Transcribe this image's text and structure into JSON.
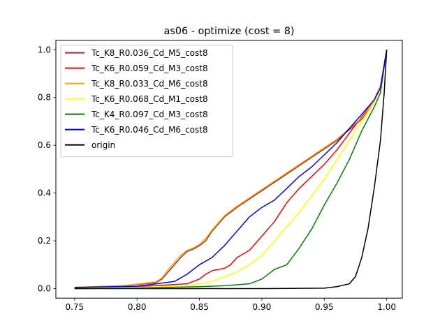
{
  "chart_data": {
    "type": "line",
    "title": "as06 - optimize (cost = 8)",
    "xlabel": "",
    "ylabel": "",
    "xlim": [
      0.735,
      1.0125
    ],
    "ylim": [
      -0.04,
      1.04
    ],
    "xticks": [
      "0.75",
      "0.80",
      "0.85",
      "0.90",
      "0.95",
      "1.00"
    ],
    "yticks": [
      "0.0",
      "0.2",
      "0.4",
      "0.6",
      "0.8",
      "1.0"
    ],
    "grid": false,
    "legend_position": "upper-left",
    "series": [
      {
        "name": "Tc_K8_R0.036_Cd_M5_cost8",
        "color": "#a52a2a",
        "x": [
          0.75,
          0.79,
          0.815,
          0.82,
          0.825,
          0.83,
          0.835,
          0.84,
          0.845,
          0.85,
          0.855,
          0.86,
          0.87,
          0.88,
          0.89,
          0.9,
          0.92,
          0.94,
          0.96,
          0.98,
          0.99,
          0.995,
          1.0
        ],
        "y": [
          0.005,
          0.012,
          0.025,
          0.04,
          0.07,
          0.1,
          0.13,
          0.155,
          0.165,
          0.18,
          0.2,
          0.24,
          0.3,
          0.34,
          0.375,
          0.41,
          0.48,
          0.55,
          0.62,
          0.71,
          0.78,
          0.84,
          1.0
        ]
      },
      {
        "name": "Tc_K6_R0.059_Cd_M3_cost8",
        "color": "#ff0000",
        "x": [
          0.75,
          0.8,
          0.84,
          0.85,
          0.855,
          0.86,
          0.87,
          0.875,
          0.88,
          0.89,
          0.9,
          0.91,
          0.92,
          0.93,
          0.94,
          0.95,
          0.96,
          0.97,
          0.98,
          0.99,
          0.995,
          1.0
        ],
        "y": [
          0.005,
          0.008,
          0.02,
          0.04,
          0.06,
          0.075,
          0.085,
          0.1,
          0.13,
          0.16,
          0.22,
          0.28,
          0.36,
          0.42,
          0.47,
          0.52,
          0.58,
          0.65,
          0.72,
          0.79,
          0.85,
          1.0
        ]
      },
      {
        "name": "Tc_K8_R0.033_Cd_M6_cost8",
        "color": "#ffa500",
        "x": [
          0.75,
          0.79,
          0.815,
          0.82,
          0.825,
          0.83,
          0.835,
          0.84,
          0.845,
          0.85,
          0.855,
          0.86,
          0.87,
          0.88,
          0.89,
          0.9,
          0.92,
          0.94,
          0.96,
          0.98,
          0.99,
          0.995,
          1.0
        ],
        "y": [
          0.005,
          0.013,
          0.028,
          0.045,
          0.08,
          0.11,
          0.14,
          0.16,
          0.17,
          0.185,
          0.21,
          0.245,
          0.305,
          0.345,
          0.38,
          0.415,
          0.485,
          0.555,
          0.625,
          0.715,
          0.785,
          0.85,
          1.0
        ]
      },
      {
        "name": "Tc_K6_R0.068_Cd_M1_cost8",
        "color": "#ffff00",
        "x": [
          0.75,
          0.8,
          0.84,
          0.86,
          0.87,
          0.88,
          0.89,
          0.9,
          0.91,
          0.92,
          0.93,
          0.94,
          0.95,
          0.96,
          0.97,
          0.98,
          0.99,
          0.995,
          1.0
        ],
        "y": [
          0.003,
          0.005,
          0.01,
          0.03,
          0.05,
          0.07,
          0.1,
          0.14,
          0.2,
          0.26,
          0.32,
          0.39,
          0.46,
          0.54,
          0.62,
          0.7,
          0.78,
          0.84,
          1.0
        ]
      },
      {
        "name": "Tc_K4_R0.097_Cd_M3_cost8",
        "color": "#008000",
        "x": [
          0.75,
          0.8,
          0.85,
          0.87,
          0.89,
          0.9,
          0.91,
          0.92,
          0.93,
          0.94,
          0.95,
          0.96,
          0.97,
          0.98,
          0.99,
          0.995,
          1.0
        ],
        "y": [
          0.0,
          0.002,
          0.008,
          0.012,
          0.02,
          0.04,
          0.08,
          0.1,
          0.17,
          0.25,
          0.35,
          0.44,
          0.54,
          0.66,
          0.76,
          0.82,
          1.0
        ]
      },
      {
        "name": "Tc_K6_R0.046_Cd_M6_cost8",
        "color": "#0000ff",
        "x": [
          0.75,
          0.8,
          0.83,
          0.84,
          0.85,
          0.86,
          0.87,
          0.88,
          0.89,
          0.9,
          0.91,
          0.92,
          0.93,
          0.94,
          0.95,
          0.96,
          0.97,
          0.98,
          0.99,
          0.995,
          1.0
        ],
        "y": [
          0.005,
          0.01,
          0.03,
          0.06,
          0.1,
          0.13,
          0.18,
          0.24,
          0.3,
          0.34,
          0.37,
          0.42,
          0.47,
          0.51,
          0.56,
          0.61,
          0.67,
          0.73,
          0.79,
          0.84,
          1.0
        ]
      },
      {
        "name": "origin",
        "color": "#000000",
        "x": [
          0.75,
          0.9,
          0.95,
          0.96,
          0.97,
          0.975,
          0.98,
          0.985,
          0.99,
          0.995,
          0.998,
          1.0
        ],
        "y": [
          0.0,
          0.0,
          0.002,
          0.008,
          0.02,
          0.05,
          0.13,
          0.25,
          0.42,
          0.62,
          0.82,
          1.0
        ]
      }
    ]
  }
}
